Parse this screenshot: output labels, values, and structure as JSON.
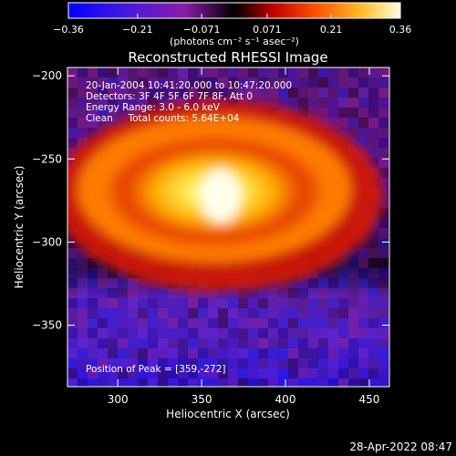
{
  "chart_data": {
    "type": "heatmap",
    "title": "Reconstructed RHESSI Image",
    "colorbar": {
      "min": -0.36,
      "max": 0.36,
      "ticks": [
        -0.36,
        -0.21,
        -0.071,
        0.071,
        0.21,
        0.36
      ],
      "tick_labels": [
        "−0.36",
        "−0.21",
        "−0.071",
        "0.071",
        "0.21",
        "0.36"
      ],
      "unit_label": "(photons cm⁻² s⁻¹ asec⁻²)"
    },
    "info_lines": [
      "20-Jan-2004 10:41:20.000 to 10:47:20.000",
      "Detectors: 3F 4F 5F 6F 7F 8F, Att 0",
      "Energy Range: 3.0 - 6.0 keV",
      "Clean     Total counts: 5.64E+04"
    ],
    "peak_label": "Position of Peak = [359,-272]",
    "xlabel": "Heliocentric X (arcsec)",
    "ylabel": "Heliocentric Y (arcsec)",
    "xlim": [
      270,
      462
    ],
    "ylim": [
      -387,
      -195
    ],
    "x_ticks": [
      300,
      350,
      400,
      450
    ],
    "y_ticks": [
      -200,
      -250,
      -300,
      -350
    ],
    "x_tick_labels": [
      "300",
      "350",
      "400",
      "450"
    ],
    "y_tick_labels": [
      "−200",
      "−250",
      "−300",
      "−350"
    ],
    "peak_position": [
      359,
      -272
    ],
    "colors": {
      "scale": [
        "#0000ff",
        "#5a16d8",
        "#9a1ea6",
        "#000000",
        "#cc0000",
        "#ff6600",
        "#ffcc33",
        "#ffffe0"
      ]
    }
  },
  "footer": {
    "date": "28-Apr-2022 08:47"
  }
}
